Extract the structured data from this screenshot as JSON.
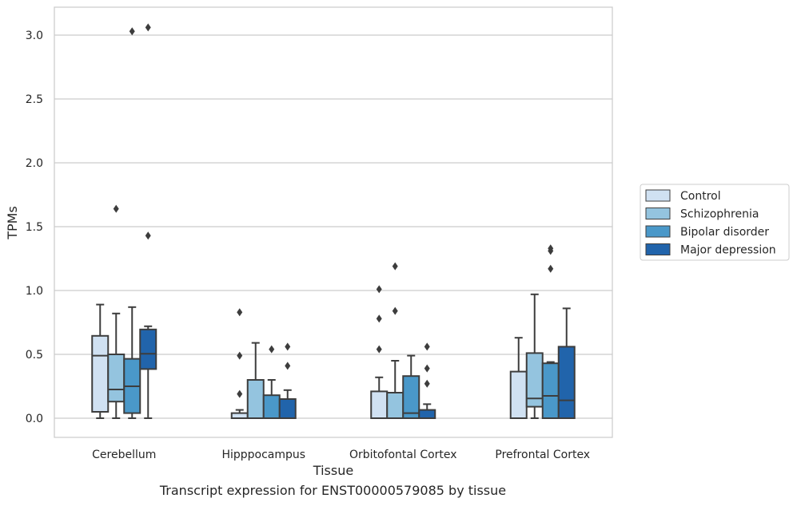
{
  "caption": "Transcript expression for ENST00000579085 by tissue",
  "chart_data": {
    "type": "box",
    "xlabel": "Tissue",
    "ylabel": "TPMs",
    "ylim": [
      -0.15,
      3.22
    ],
    "yticks": [
      "0.0",
      "0.5",
      "1.0",
      "1.5",
      "2.0",
      "2.5",
      "3.0"
    ],
    "grid": "horizontal",
    "legend_position": "right",
    "categories": [
      "Cerebellum",
      "Hipppocampus",
      "Orbitofontal Cortex",
      "Prefrontal Cortex"
    ],
    "series": [
      {
        "name": "Control",
        "color": "#d0e1f2",
        "boxes": [
          {
            "whislo": 0.0,
            "q1": 0.05,
            "med": 0.49,
            "q3": 0.645,
            "whishi": 0.89,
            "fliers": []
          },
          {
            "whislo": 0.0,
            "q1": 0.0,
            "med": 0.0,
            "q3": 0.04,
            "whishi": 0.065,
            "fliers": [
              0.19,
              0.49,
              0.83
            ]
          },
          {
            "whislo": 0.0,
            "q1": 0.0,
            "med": 0.0,
            "q3": 0.21,
            "whishi": 0.32,
            "fliers": [
              0.54,
              0.78,
              1.01
            ]
          },
          {
            "whislo": 0.0,
            "q1": 0.0,
            "med": 0.0,
            "q3": 0.365,
            "whishi": 0.63,
            "fliers": []
          }
        ]
      },
      {
        "name": "Schizophrenia",
        "color": "#94c4df",
        "boxes": [
          {
            "whislo": 0.0,
            "q1": 0.13,
            "med": 0.225,
            "q3": 0.5,
            "whishi": 0.82,
            "fliers": [
              1.64
            ]
          },
          {
            "whislo": 0.0,
            "q1": 0.0,
            "med": 0.0,
            "q3": 0.3,
            "whishi": 0.59,
            "fliers": []
          },
          {
            "whislo": 0.0,
            "q1": 0.0,
            "med": 0.0,
            "q3": 0.2,
            "whishi": 0.45,
            "fliers": [
              0.84,
              1.19
            ]
          },
          {
            "whislo": 0.0,
            "q1": 0.09,
            "med": 0.155,
            "q3": 0.51,
            "whishi": 0.97,
            "fliers": []
          }
        ]
      },
      {
        "name": "Bipolar disorder",
        "color": "#4a98c9",
        "boxes": [
          {
            "whislo": 0.0,
            "q1": 0.04,
            "med": 0.25,
            "q3": 0.465,
            "whishi": 0.87,
            "fliers": [
              3.03
            ]
          },
          {
            "whislo": 0.0,
            "q1": 0.0,
            "med": 0.0,
            "q3": 0.18,
            "whishi": 0.3,
            "fliers": [
              0.54
            ]
          },
          {
            "whislo": 0.0,
            "q1": 0.0,
            "med": 0.04,
            "q3": 0.33,
            "whishi": 0.49,
            "fliers": []
          },
          {
            "whislo": 0.0,
            "q1": 0.0,
            "med": 0.175,
            "q3": 0.43,
            "whishi": 0.44,
            "fliers": [
              1.17,
              1.31,
              1.33
            ]
          }
        ]
      },
      {
        "name": "Major depression",
        "color": "#2164ab",
        "boxes": [
          {
            "whislo": 0.0,
            "q1": 0.385,
            "med": 0.505,
            "q3": 0.695,
            "whishi": 0.72,
            "fliers": [
              1.43,
              3.06
            ]
          },
          {
            "whislo": 0.0,
            "q1": 0.0,
            "med": 0.0,
            "q3": 0.15,
            "whishi": 0.22,
            "fliers": [
              0.41,
              0.56
            ]
          },
          {
            "whislo": 0.0,
            "q1": 0.0,
            "med": 0.0,
            "q3": 0.065,
            "whishi": 0.11,
            "fliers": [
              0.27,
              0.39,
              0.56
            ]
          },
          {
            "whislo": 0.0,
            "q1": 0.0,
            "med": 0.14,
            "q3": 0.56,
            "whishi": 0.86,
            "fliers": []
          }
        ]
      }
    ]
  }
}
